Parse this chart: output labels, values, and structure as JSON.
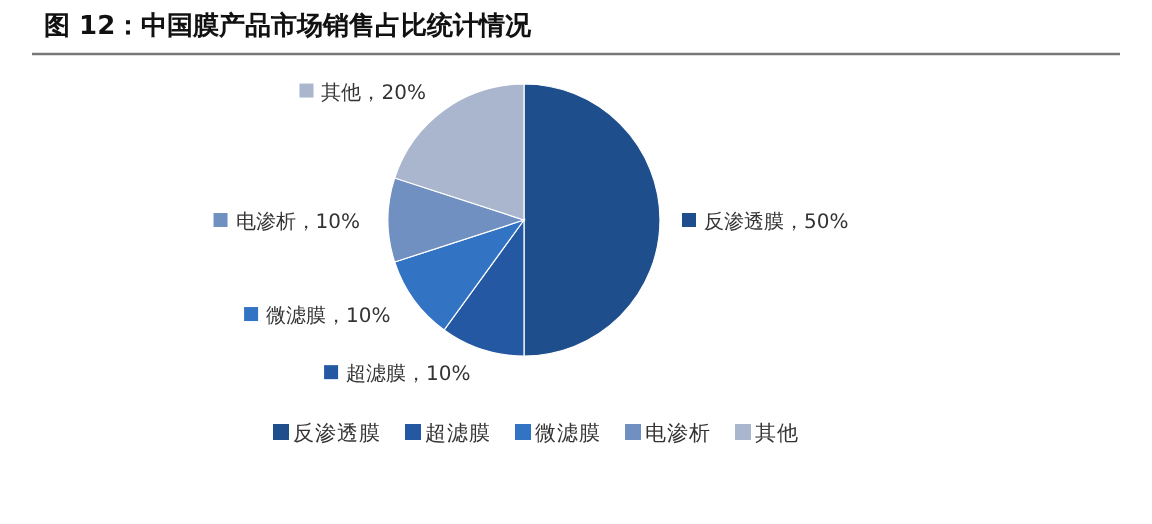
{
  "chart_data": {
    "type": "pie",
    "title": "图 12：中国膜产品市场销售占比统计情况",
    "categories": [
      "反渗透膜",
      "超滤膜",
      "微滤膜",
      "电渗析",
      "其他"
    ],
    "values": [
      50,
      10,
      10,
      10,
      20
    ],
    "colors": [
      "#1f4e8c",
      "#2558a3",
      "#3273c4",
      "#7090c2",
      "#a9b6ce"
    ],
    "value_labels": [
      "反渗透膜，50%",
      "超滤膜，10%",
      "微滤膜，10%",
      "电渗析，10%",
      "其他，20%"
    ],
    "legend": "bottom"
  }
}
